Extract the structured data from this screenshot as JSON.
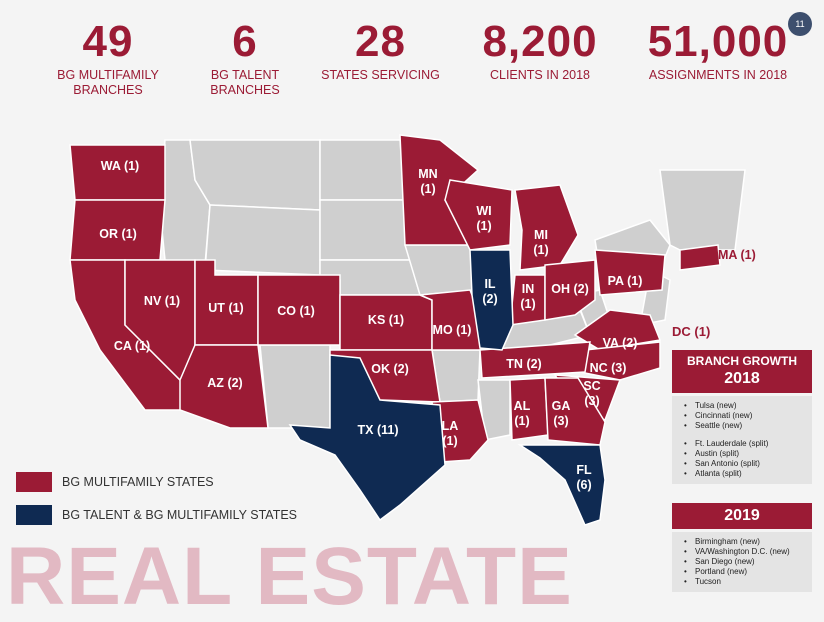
{
  "stats": [
    {
      "number": "49",
      "label1": "BG MULTIFAMILY",
      "label2": "BRANCHES"
    },
    {
      "number": "6",
      "label1": "BG TALENT",
      "label2": "BRANCHES"
    },
    {
      "number": "28",
      "label1": "STATES SERVICING",
      "label2": ""
    },
    {
      "number": "8,200",
      "label1": "CLIENTS IN 2018",
      "label2": ""
    },
    {
      "number": "51,000",
      "label1": "ASSIGNMENTS IN 2018",
      "label2": ""
    }
  ],
  "page_number": "11",
  "colors": {
    "multifamily": "#9b1b35",
    "talent": "#0f2a52",
    "other_state": "#cfcfcf",
    "background": "#f4f4f4",
    "watermark": "#e2b9c3"
  },
  "states": [
    {
      "abbr": "WA",
      "count": "(1)",
      "type": "multifamily"
    },
    {
      "abbr": "OR",
      "count": "(1)",
      "type": "multifamily"
    },
    {
      "abbr": "CA",
      "count": "(1)",
      "type": "multifamily"
    },
    {
      "abbr": "NV",
      "count": "(1)",
      "type": "multifamily"
    },
    {
      "abbr": "UT",
      "count": "(1)",
      "type": "multifamily"
    },
    {
      "abbr": "AZ",
      "count": "(2)",
      "type": "multifamily"
    },
    {
      "abbr": "CO",
      "count": "(1)",
      "type": "multifamily"
    },
    {
      "abbr": "KS",
      "count": "(1)",
      "type": "multifamily"
    },
    {
      "abbr": "OK",
      "count": "(2)",
      "type": "multifamily"
    },
    {
      "abbr": "TX",
      "count": "(11)",
      "type": "talent"
    },
    {
      "abbr": "MN",
      "count": "(1)",
      "type": "multifamily"
    },
    {
      "abbr": "WI",
      "count": "(1)",
      "type": "multifamily"
    },
    {
      "abbr": "MI",
      "count": "(1)",
      "type": "multifamily"
    },
    {
      "abbr": "IL",
      "count": "(2)",
      "type": "talent"
    },
    {
      "abbr": "IN",
      "count": "(1)",
      "type": "multifamily"
    },
    {
      "abbr": "OH",
      "count": "(2)",
      "type": "multifamily"
    },
    {
      "abbr": "PA",
      "count": "(1)",
      "type": "multifamily"
    },
    {
      "abbr": "MO",
      "count": "(1)",
      "type": "multifamily"
    },
    {
      "abbr": "LA",
      "count": "(1)",
      "type": "multifamily"
    },
    {
      "abbr": "TN",
      "count": "(2)",
      "type": "multifamily"
    },
    {
      "abbr": "AL",
      "count": "(1)",
      "type": "multifamily"
    },
    {
      "abbr": "GA",
      "count": "(3)",
      "type": "multifamily"
    },
    {
      "abbr": "FL",
      "count": "(6)",
      "type": "talent"
    },
    {
      "abbr": "SC",
      "count": "(3)",
      "type": "multifamily"
    },
    {
      "abbr": "NC",
      "count": "(3)",
      "type": "multifamily"
    },
    {
      "abbr": "VA",
      "count": "(2)",
      "type": "multifamily"
    },
    {
      "abbr": "MA",
      "count": "(1)",
      "type": "multifamily"
    },
    {
      "abbr": "DC",
      "count": "(1)",
      "type": "multifamily"
    }
  ],
  "legend": [
    {
      "label": "BG MULTIFAMILY STATES",
      "color": "#9b1b35"
    },
    {
      "label": "BG TALENT & BG MULTIFAMILY STATES",
      "color": "#0f2a52"
    }
  ],
  "branch_growth": {
    "title": "BRANCH GROWTH",
    "year_2018": "2018",
    "new_2018": [
      "Tulsa (new)",
      "Cincinnati (new)",
      "Seattle (new)"
    ],
    "split_2018": [
      "Ft. Lauderdale (split)",
      "Austin (split)",
      "San Antonio (split)",
      "Atlanta (split)"
    ],
    "year_2019": "2019",
    "list_2019": [
      "Birmingham (new)",
      "VA/Washington D.C. (new)",
      "San Diego (new)",
      "Portland (new)",
      "Tucson"
    ]
  },
  "watermark": "REAL ESTATE"
}
